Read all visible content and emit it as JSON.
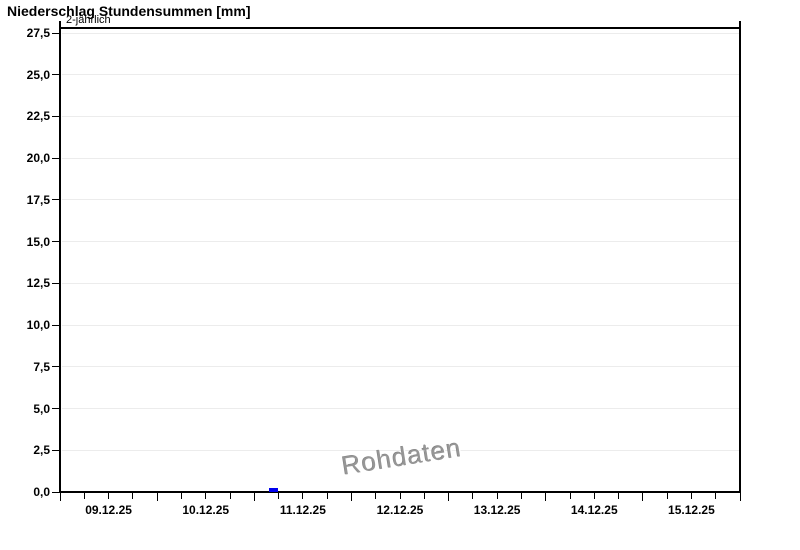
{
  "window": {
    "title": "Niederschlag Stundensummen [mm]"
  },
  "chart_data": {
    "type": "bar",
    "title": "Niederschlag Stundensummen [mm]",
    "xlabel": "",
    "ylabel": "",
    "unit": "mm",
    "ylim": [
      0,
      27.8
    ],
    "x_range_days": [
      "09.12.25",
      "16.12.25"
    ],
    "grid": "horizontal-only",
    "legend": "none",
    "y_ticks": [
      {
        "value": 0,
        "label": "0,0"
      },
      {
        "value": 2.5,
        "label": "2,5"
      },
      {
        "value": 5,
        "label": "5,0"
      },
      {
        "value": 7.5,
        "label": "7,5"
      },
      {
        "value": 10,
        "label": "10,0"
      },
      {
        "value": 12.5,
        "label": "12,5"
      },
      {
        "value": 15,
        "label": "15,0"
      },
      {
        "value": 17.5,
        "label": "17,5"
      },
      {
        "value": 20,
        "label": "20,0"
      },
      {
        "value": 22.5,
        "label": "22,5"
      },
      {
        "value": 25,
        "label": "25,0"
      },
      {
        "value": 27.5,
        "label": "27,5"
      }
    ],
    "x_day_labels": [
      "09.12.25",
      "10.12.25",
      "11.12.25",
      "12.12.25",
      "13.12.25",
      "14.12.25",
      "15.12.25"
    ],
    "minor_ticks_per_day": 4,
    "threshold_line": {
      "label": "2-jährlich",
      "value_mm": 27.8,
      "color": "#000000"
    },
    "watermark": "Rohdaten",
    "series": [
      {
        "name": "Niederschlag Stundensummen",
        "color": "#0000ee",
        "bars": [
          {
            "date": "11.12.25",
            "approx_time": "03:30-05:45",
            "start_day_offset_days": 2.15,
            "width_days": 0.09,
            "value_mm": 0.25
          }
        ]
      }
    ],
    "colors": {
      "axis": "#000000",
      "grid": "#ececec",
      "watermark": "#969696",
      "bar": "#0000ee",
      "background": "#ffffff"
    }
  }
}
